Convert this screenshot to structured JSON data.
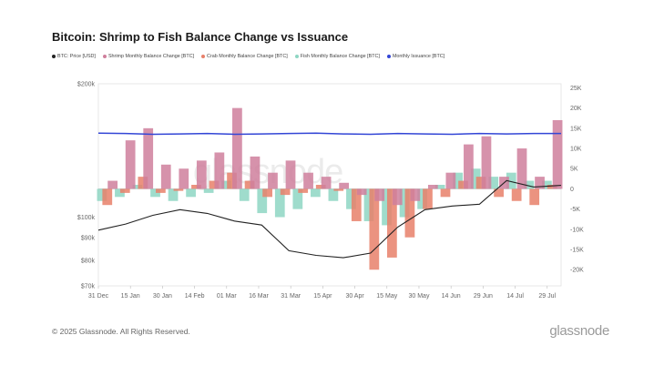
{
  "title": "Bitcoin: Shrimp to Fish Balance Change vs Issuance",
  "legend": [
    {
      "label": "BTC: Price [USD]",
      "color": "#222222"
    },
    {
      "label": "Shrimp Monthly Balance Change [BTC]",
      "color": "#cf7f9c"
    },
    {
      "label": "Crab Monthly Balance Change [BTC]",
      "color": "#e8806a"
    },
    {
      "label": "Fish Monthly Balance Change [BTC]",
      "color": "#8ed6c3"
    },
    {
      "label": "Monthly Issuance [BTC]",
      "color": "#3346d6"
    }
  ],
  "watermark": "glassnode",
  "footer": "© 2025 Glassnode. All Rights Reserved.",
  "brand": "glassnode",
  "chart_data": {
    "type": "bar",
    "x_ticks": [
      "31 Dec",
      "15 Jan",
      "30 Jan",
      "14 Feb",
      "01 Mar",
      "16 Mar",
      "31 Mar",
      "15 Apr",
      "30 Apr",
      "15 May",
      "30 May",
      "14 Jun",
      "29 Jun",
      "14 Jul",
      "29 Jul"
    ],
    "y_left_ticks": [
      "$200k",
      "$100k",
      "$90k",
      "$80k",
      "$70k"
    ],
    "y_left_values": [
      200000,
      100000,
      90000,
      80000,
      70000
    ],
    "y_right_ticks": [
      "25K",
      "20K",
      "15K",
      "10K",
      "5K",
      "0",
      "-5K",
      "-10K",
      "-15K",
      "-20K"
    ],
    "y_right_values": [
      25000,
      20000,
      15000,
      10000,
      5000,
      0,
      -5000,
      -10000,
      -15000,
      -20000
    ],
    "ylim_right": [
      -24000,
      26000
    ],
    "series": [
      {
        "name": "BTC: Price [USD]",
        "type": "line",
        "color": "#222222",
        "values": [
          93500,
          96500,
          101000,
          104000,
          102000,
          98000,
          96000,
          84000,
          82000,
          81000,
          83000,
          95000,
          104000,
          106000,
          107000,
          121000,
          117000,
          118000
        ]
      },
      {
        "name": "Monthly Issuance [BTC]",
        "type": "line",
        "color": "#3346d6",
        "values": [
          13800,
          13700,
          13500,
          13600,
          13700,
          13500,
          13600,
          13700,
          13800,
          13600,
          13500,
          13700,
          13600,
          13500,
          13700,
          13600,
          13700,
          13700
        ]
      },
      {
        "name": "Shrimp Monthly Balance Change [BTC]",
        "type": "bar",
        "color": "#cf7f9c",
        "values": [
          2000,
          12000,
          15000,
          6000,
          5000,
          7000,
          9000,
          20000,
          8000,
          4000,
          7000,
          4000,
          3000,
          1500,
          -1500,
          -3000,
          -4000,
          -3000,
          1000,
          4000,
          11000,
          13000,
          3000,
          10000,
          3000,
          17000
        ]
      },
      {
        "name": "Crab Monthly Balance Change [BTC]",
        "type": "bar",
        "color": "#e8806a",
        "values": [
          -4000,
          -1000,
          3000,
          -1000,
          -500,
          1000,
          2000,
          4000,
          2000,
          -2000,
          -1500,
          -1000,
          1000,
          -500,
          -8000,
          -20000,
          -17000,
          -12000,
          -5000,
          -2000,
          2000,
          3000,
          -2000,
          -3000,
          -4000,
          1000
        ]
      },
      {
        "name": "Fish Monthly Balance Change [BTC]",
        "type": "bar",
        "color": "#8ed6c3",
        "values": [
          -3000,
          -2000,
          1000,
          -2000,
          -3000,
          -2000,
          -1000,
          2000,
          -3000,
          -6000,
          -7000,
          -5000,
          -2000,
          -3000,
          -5000,
          -8000,
          -9000,
          -7000,
          -5000,
          1000,
          4000,
          5000,
          3000,
          4000,
          2000,
          2000
        ]
      }
    ]
  }
}
